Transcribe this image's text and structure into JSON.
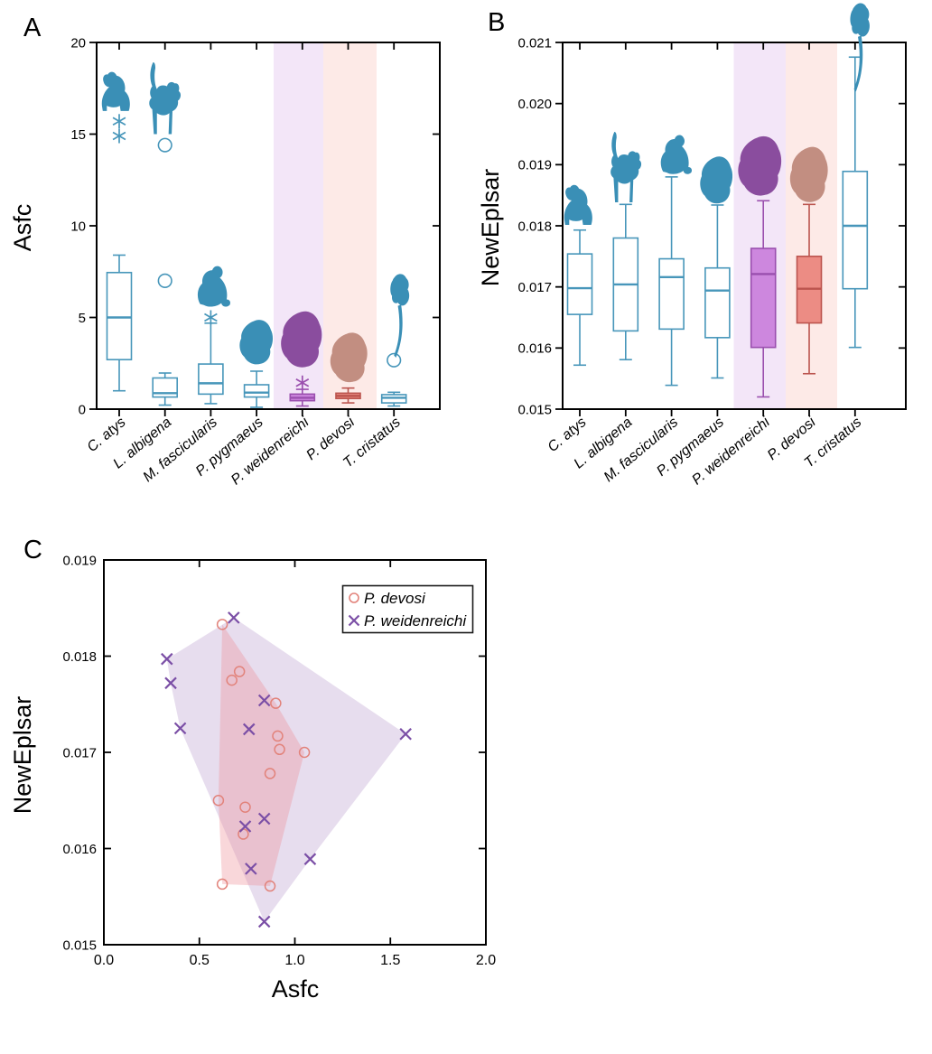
{
  "panels": {
    "a": {
      "letter": "A",
      "ylabel": "Asfc"
    },
    "b": {
      "letter": "B",
      "ylabel": "NewEplsar"
    },
    "c": {
      "letter": "C",
      "ylabel": "NewEplsar",
      "xlabel": "Asfc"
    }
  },
  "colors": {
    "box_teal": "#4796ba",
    "silhouette_teal": "#3a8fb6",
    "weidenreichi_fill": "#cd87de",
    "weidenreichi_stroke": "#9a4fae",
    "weidenreichi_silhouette": "#8a4d9e",
    "devosi_fill": "#ec8c84",
    "devosi_stroke": "#bb544e",
    "devosi_silhouette": "#c28e81",
    "band_purple": "#f3e6f8",
    "band_pink": "#fdeae7",
    "scatter_devosi": "#e2837b",
    "scatter_weidenreichi": "#7b4fa6",
    "hull_devosi": "rgba(238,140,150,0.35)",
    "hull_weidenreichi": "rgba(158,118,188,0.25)",
    "axis": "#000000"
  },
  "chart_data": [
    {
      "type": "boxplot",
      "panel": "A",
      "title": "",
      "ylabel": "Asfc",
      "ylim": [
        0,
        20
      ],
      "yticks": [
        0,
        5,
        10,
        15,
        20
      ],
      "ytick_labels": [
        "0",
        "5",
        "10",
        "15",
        "20"
      ],
      "categories": [
        "C. atys",
        "L. albigena",
        "M. fascicularis",
        "P. pygmaeus",
        "P. weidenreichi",
        "P. devosi",
        "T. cristatus"
      ],
      "boxes": [
        {
          "species": "C. atys",
          "lo": 1.0,
          "q1": 2.7,
          "med": 5.0,
          "q3": 7.45,
          "hi": 8.4,
          "out_star": [
            15.7,
            14.9
          ],
          "out_circle": []
        },
        {
          "species": "L. albigena",
          "lo": 0.22,
          "q1": 0.66,
          "med": 0.87,
          "q3": 1.7,
          "hi": 1.97,
          "out_star": [],
          "out_circle": [
            14.4,
            7.0
          ]
        },
        {
          "species": "M. fascicularis",
          "lo": 0.3,
          "q1": 0.82,
          "med": 1.41,
          "q3": 2.46,
          "hi": 4.69,
          "out_star": [
            5.0
          ],
          "out_circle": []
        },
        {
          "species": "P. pygmaeus",
          "lo": 0.1,
          "q1": 0.66,
          "med": 0.9,
          "q3": 1.33,
          "hi": 2.07,
          "out_star": [],
          "out_circle": []
        },
        {
          "species": "P. weidenreichi",
          "lo": 0.17,
          "q1": 0.46,
          "med": 0.62,
          "q3": 0.82,
          "hi": 1.08,
          "out_star": [
            1.44
          ],
          "out_circle": []
        },
        {
          "species": "P. devosi",
          "lo": 0.34,
          "q1": 0.58,
          "med": 0.72,
          "q3": 0.87,
          "hi": 1.15,
          "out_star": [],
          "out_circle": []
        },
        {
          "species": "T. cristatus",
          "lo": 0.17,
          "q1": 0.34,
          "med": 0.62,
          "q3": 0.79,
          "hi": 0.92,
          "out_star": [],
          "out_circle": [
            2.67
          ]
        }
      ],
      "shaded_species": [
        "P. weidenreichi",
        "P. devosi"
      ]
    },
    {
      "type": "boxplot",
      "panel": "B",
      "title": "",
      "ylabel": "NewEplsar",
      "ylim": [
        0.015,
        0.021
      ],
      "yticks": [
        0.015,
        0.016,
        0.017,
        0.018,
        0.019,
        0.02,
        0.021
      ],
      "ytick_labels": [
        "0.015",
        "0.016",
        "0.017",
        "0.018",
        "0.019",
        "0.020",
        "0.021"
      ],
      "categories": [
        "C. atys",
        "L. albigena",
        "M. fascicularis",
        "P. pygmaeus",
        "P. weidenreichi",
        "P. devosi",
        "T. cristatus"
      ],
      "boxes": [
        {
          "species": "C. atys",
          "lo": 0.01572,
          "q1": 0.01655,
          "med": 0.01698,
          "q3": 0.01754,
          "hi": 0.01793,
          "out_star": [],
          "out_circle": []
        },
        {
          "species": "L. albigena",
          "lo": 0.01581,
          "q1": 0.01628,
          "med": 0.01704,
          "q3": 0.0178,
          "hi": 0.01835,
          "out_star": [],
          "out_circle": []
        },
        {
          "species": "M. fascicularis",
          "lo": 0.01539,
          "q1": 0.01631,
          "med": 0.01716,
          "q3": 0.01746,
          "hi": 0.0188,
          "out_star": [],
          "out_circle": []
        },
        {
          "species": "P. pygmaeus",
          "lo": 0.01551,
          "q1": 0.01617,
          "med": 0.01694,
          "q3": 0.01731,
          "hi": 0.01834,
          "out_star": [],
          "out_circle": []
        },
        {
          "species": "P. weidenreichi",
          "lo": 0.0152,
          "q1": 0.01601,
          "med": 0.01721,
          "q3": 0.01763,
          "hi": 0.01841,
          "out_star": [],
          "out_circle": []
        },
        {
          "species": "P. devosi",
          "lo": 0.01558,
          "q1": 0.01641,
          "med": 0.01697,
          "q3": 0.0175,
          "hi": 0.01835,
          "out_star": [],
          "out_circle": []
        },
        {
          "species": "T. cristatus",
          "lo": 0.01601,
          "q1": 0.01697,
          "med": 0.018,
          "q3": 0.01889,
          "hi": 0.02076,
          "out_star": [],
          "out_circle": []
        }
      ],
      "shaded_species": [
        "P. weidenreichi",
        "P. devosi"
      ]
    },
    {
      "type": "scatter",
      "panel": "C",
      "xlabel": "Asfc",
      "ylabel": "NewEplsar",
      "xlim": [
        0.0,
        2.0
      ],
      "ylim": [
        0.015,
        0.019
      ],
      "xticks": [
        0.0,
        0.5,
        1.0,
        1.5,
        2.0
      ],
      "xtick_labels": [
        "0.0",
        "0.5",
        "1.0",
        "1.5",
        "2.0"
      ],
      "yticks": [
        0.015,
        0.016,
        0.017,
        0.018,
        0.019
      ],
      "ytick_labels": [
        "0.015",
        "0.016",
        "0.017",
        "0.018",
        "0.019"
      ],
      "legend": {
        "entries": [
          {
            "label": "P. devosi",
            "marker": "circle"
          },
          {
            "label": "P. weidenreichi",
            "marker": "x"
          }
        ]
      },
      "series": [
        {
          "name": "P. devosi",
          "marker": "circle",
          "points": [
            [
              0.62,
              0.01833
            ],
            [
              0.71,
              0.01784
            ],
            [
              0.67,
              0.01775
            ],
            [
              0.9,
              0.01751
            ],
            [
              0.91,
              0.01717
            ],
            [
              0.92,
              0.01703
            ],
            [
              1.05,
              0.017
            ],
            [
              0.87,
              0.01678
            ],
            [
              0.6,
              0.0165
            ],
            [
              0.74,
              0.01643
            ],
            [
              0.73,
              0.01615
            ],
            [
              0.62,
              0.01563
            ],
            [
              0.87,
              0.01561
            ]
          ],
          "hull": [
            [
              0.62,
              0.01833
            ],
            [
              0.9,
              0.01751
            ],
            [
              1.05,
              0.017
            ],
            [
              0.87,
              0.01561
            ],
            [
              0.62,
              0.01563
            ],
            [
              0.6,
              0.0165
            ]
          ]
        },
        {
          "name": "P. weidenreichi",
          "marker": "x",
          "points": [
            [
              0.68,
              0.0184
            ],
            [
              0.33,
              0.01797
            ],
            [
              0.35,
              0.01772
            ],
            [
              0.84,
              0.01754
            ],
            [
              0.4,
              0.01725
            ],
            [
              0.76,
              0.01724
            ],
            [
              1.58,
              0.01719
            ],
            [
              0.84,
              0.01631
            ],
            [
              0.74,
              0.01623
            ],
            [
              1.08,
              0.01589
            ],
            [
              0.77,
              0.01579
            ],
            [
              0.84,
              0.01524
            ]
          ],
          "hull": [
            [
              0.68,
              0.0184
            ],
            [
              1.58,
              0.01719
            ],
            [
              1.08,
              0.01589
            ],
            [
              0.84,
              0.01524
            ],
            [
              0.4,
              0.01725
            ],
            [
              0.35,
              0.01772
            ],
            [
              0.33,
              0.01797
            ]
          ]
        }
      ]
    }
  ]
}
